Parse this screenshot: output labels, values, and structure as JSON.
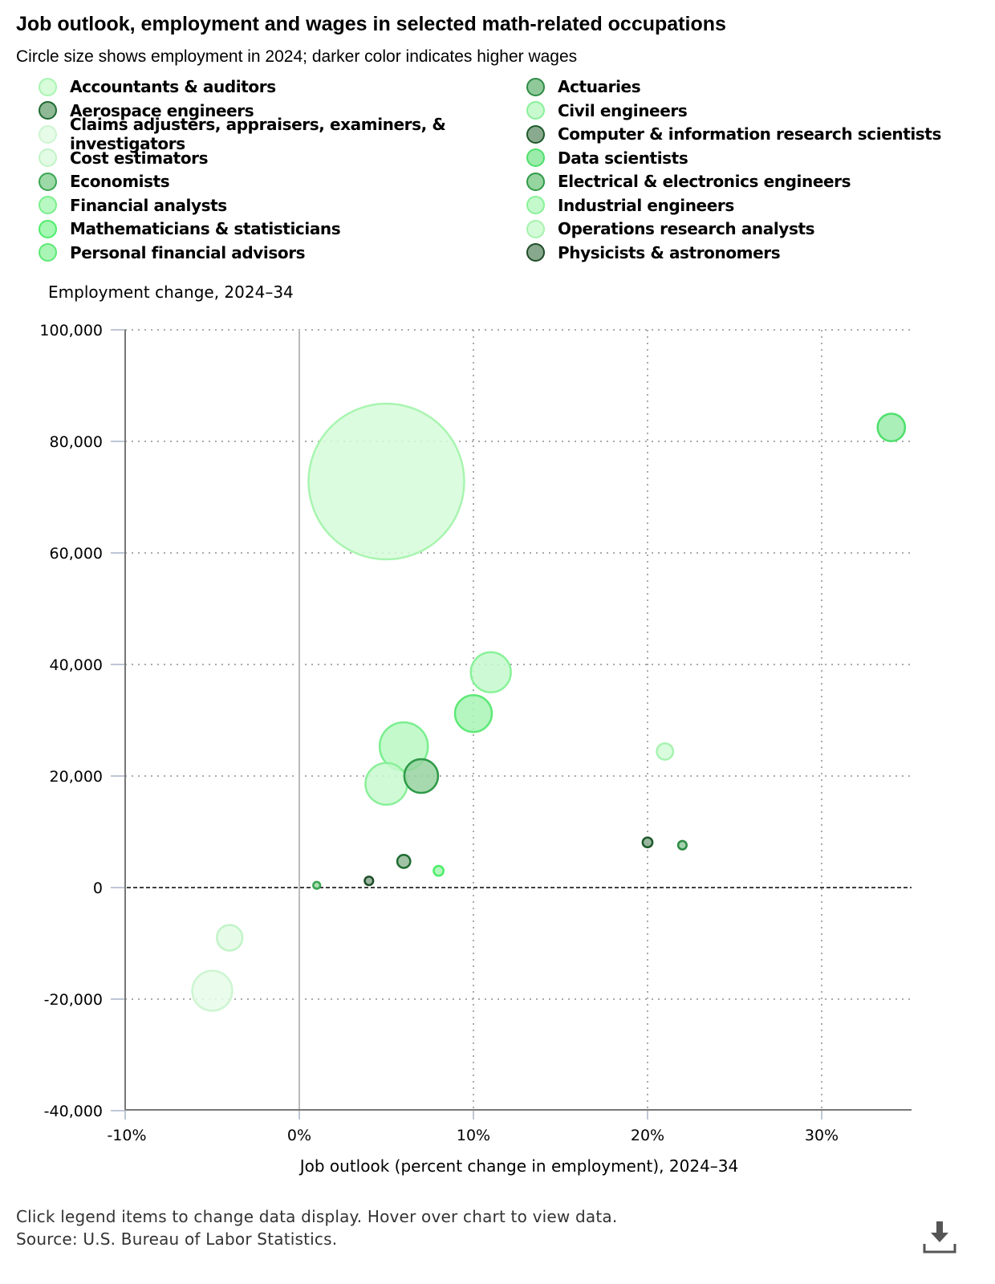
{
  "title": "Job outlook, employment and wages in selected math-related occupations",
  "subtitle": "Circle size shows employment in 2024; darker color indicates higher wages",
  "footer": {
    "note": "Click legend items to change data display. Hover over chart to view data.",
    "source": "Source: U.S. Bureau of Labor Statistics."
  },
  "download_icon": "download-icon",
  "chart_data": {
    "type": "bubble",
    "xlabel": "Job outlook (percent change in employment), 2024–34",
    "ylabel": "Employment change, 2024–34",
    "xlim": [
      -10,
      35
    ],
    "ylim": [
      -40000,
      100000
    ],
    "xticks": [
      "-10%",
      "0%",
      "10%",
      "20%",
      "30%"
    ],
    "xtick_values": [
      -10,
      0,
      10,
      20,
      30
    ],
    "yticks": [
      "100,000",
      "80,000",
      "60,000",
      "40,000",
      "20,000",
      "0",
      "-20,000",
      "-40,000"
    ],
    "ytick_values": [
      100000,
      80000,
      60000,
      40000,
      20000,
      0,
      -20000,
      -40000
    ],
    "grid": true,
    "legend": "top",
    "size_note": "size = relative circle area (largest = 100)",
    "series": [
      {
        "name": "Accountants & auditors",
        "x": 5,
        "y": 72800,
        "size": 100,
        "fill": "#d6fcd9",
        "stroke": "#a8f5b0"
      },
      {
        "name": "Actuaries",
        "x": 22,
        "y": 7600,
        "size": 0.3,
        "fill": "#8fc99a",
        "stroke": "#2e8b45"
      },
      {
        "name": "Aerospace engineers",
        "x": 6,
        "y": 4700,
        "size": 0.7,
        "fill": "#8fb895",
        "stroke": "#1f6b30"
      },
      {
        "name": "Civil engineers",
        "x": 5,
        "y": 18600,
        "size": 7.2,
        "fill": "#c8f9cf",
        "stroke": "#8af09a"
      },
      {
        "name": "Claims adjusters, appraisers, examiners, & investigators",
        "x": -5,
        "y": -18500,
        "size": 6.6,
        "fill": "#e6fbe8",
        "stroke": "#cdf5d1"
      },
      {
        "name": "Computer & information research scientists",
        "x": 20,
        "y": 8100,
        "size": 0.4,
        "fill": "#8aaa8f",
        "stroke": "#1d5a2a"
      },
      {
        "name": "Cost estimators",
        "x": -4,
        "y": -9000,
        "size": 2.7,
        "fill": "#e2fbe4",
        "stroke": "#c2f3c8"
      },
      {
        "name": "Data scientists",
        "x": 34,
        "y": 82500,
        "size": 3.1,
        "fill": "#9bebab",
        "stroke": "#4fe06b"
      },
      {
        "name": "Economists",
        "x": 1,
        "y": 400,
        "size": 0.2,
        "fill": "#9dd9a6",
        "stroke": "#3aa552"
      },
      {
        "name": "Electrical & electronics engineers",
        "x": 7,
        "y": 20000,
        "size": 4.7,
        "fill": "#96d4a0",
        "stroke": "#2f9a48"
      },
      {
        "name": "Financial analysts",
        "x": 6,
        "y": 25300,
        "size": 9.6,
        "fill": "#b8f8c2",
        "stroke": "#7aef8e"
      },
      {
        "name": "Industrial engineers",
        "x": 11,
        "y": 38600,
        "size": 6.6,
        "fill": "#c4f9cc",
        "stroke": "#88f299"
      },
      {
        "name": "Mathematicians & statisticians",
        "x": 8,
        "y": 3000,
        "size": 0.4,
        "fill": "#a5f7b3",
        "stroke": "#4ded69"
      },
      {
        "name": "Operations research analysts",
        "x": 21,
        "y": 24400,
        "size": 1.1,
        "fill": "#d4fbd8",
        "stroke": "#a6f3af"
      },
      {
        "name": "Personal financial advisors",
        "x": 10,
        "y": 31200,
        "size": 5.6,
        "fill": "#a8f5b5",
        "stroke": "#5ee977"
      },
      {
        "name": "Physicists & astronomers",
        "x": 4,
        "y": 1200,
        "size": 0.3,
        "fill": "#88a88d",
        "stroke": "#1e4d28"
      }
    ]
  }
}
